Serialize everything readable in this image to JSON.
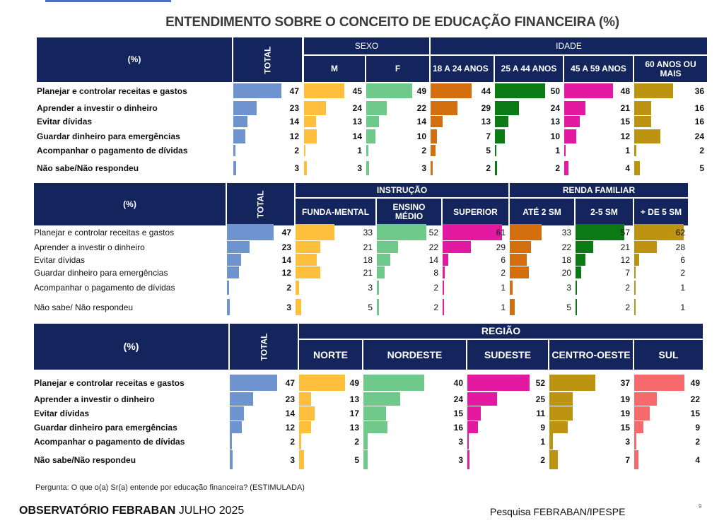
{
  "title": "ENTENDIMENTO SOBRE  O CONCEITO DE EDUCAÇÃO FINANCEIRA (%)",
  "footer": {
    "question": "Pergunta: O que o(a) Sr(a) entende por educação financeira? (ESTIMULADA)",
    "brand_bold": "OBSERVATÓRIO  FEBRABAN",
    "brand_date": " JULHO 2025",
    "source": "Pesquisa FEBRABAN/IPESPE",
    "page": "9"
  },
  "colors": {
    "header": "#14255e",
    "total": "#6f93cf",
    "M": "#fdbf3c",
    "F": "#6fc98b",
    "18a24": "#d46f10",
    "25a44": "#0b7a14",
    "45a59": "#e319a2",
    "60mais": "#bd9411",
    "fundamental": "#fdbf3c",
    "medio": "#6fc98b",
    "superior": "#e319a2",
    "ate2sm": "#d46f10",
    "2a5sm": "#0b7a14",
    "mais5sm": "#bd9411",
    "norte": "#fdbf3c",
    "nordeste": "#6fc98b",
    "sudeste": "#e319a2",
    "centro_oeste": "#bd9411",
    "sul": "#f66a6e"
  },
  "chart_data": [
    {
      "type": "table",
      "pct_label": "(%)",
      "total_label": "TOTAL",
      "groups": [
        {
          "label": "SEXO"
        },
        {
          "label": "IDADE"
        }
      ],
      "categories": [
        "Planejar e controlar receitas e gastos",
        "Aprender a investir o dinheiro",
        "Evitar dívidas",
        "Guardar dinheiro para emergências",
        "Acompanhar o pagamento de dívidas",
        "Não sabe/Não respondeu"
      ],
      "series": [
        {
          "name": "TOTAL",
          "values": [
            47,
            23,
            14,
            12,
            2,
            3
          ]
        },
        {
          "name": "M",
          "values": [
            45,
            24,
            13,
            14,
            1,
            3
          ]
        },
        {
          "name": "F",
          "values": [
            49,
            22,
            14,
            10,
            2,
            3
          ]
        },
        {
          "name": "18 A 24 ANOS",
          "values": [
            44,
            29,
            13,
            7,
            5,
            2
          ]
        },
        {
          "name": "25 A 44 ANOS",
          "values": [
            50,
            24,
            13,
            10,
            1,
            2
          ]
        },
        {
          "name": "45 A 59 ANOS",
          "values": [
            48,
            21,
            15,
            12,
            1,
            4
          ]
        },
        {
          "name": "60 ANOS OU MAIS",
          "values": [
            36,
            16,
            16,
            24,
            2,
            5
          ]
        }
      ]
    },
    {
      "type": "table",
      "pct_label": "(%)",
      "total_label": "TOTAL",
      "groups": [
        {
          "label": "INSTRUÇÃO"
        },
        {
          "label": "RENDA FAMILIAR"
        }
      ],
      "categories": [
        "Planejar e controlar receitas e gastos",
        "Aprender a investir o dinheiro",
        "Evitar dívidas",
        "Guardar dinheiro para emergências",
        "Acompanhar o pagamento de dívidas",
        "Não sabe/ Não respondeu"
      ],
      "series": [
        {
          "name": "TOTAL",
          "values": [
            47,
            23,
            14,
            12,
            2,
            3
          ]
        },
        {
          "name": "FUNDA-MENTAL",
          "values": [
            33,
            21,
            18,
            21,
            3,
            5
          ]
        },
        {
          "name": "ENSINO MÉDIO",
          "values": [
            52,
            22,
            14,
            8,
            2,
            2
          ]
        },
        {
          "name": "SUPERIOR",
          "values": [
            61,
            29,
            6,
            2,
            1,
            1
          ]
        },
        {
          "name": "ATÉ 2 SM",
          "values": [
            33,
            22,
            18,
            20,
            3,
            5
          ]
        },
        {
          "name": "2-5 SM",
          "values": [
            57,
            21,
            12,
            7,
            2,
            2
          ]
        },
        {
          "name": "+ DE 5 SM",
          "values": [
            62,
            28,
            6,
            2,
            1,
            1
          ]
        }
      ]
    },
    {
      "type": "table",
      "pct_label": "(%)",
      "total_label": "TOTAL",
      "groups": [
        {
          "label": "REGIÃO"
        }
      ],
      "categories": [
        "Planejar e controlar receitas e gastos",
        "Aprender a investir o dinheiro",
        "Evitar dívidas",
        "Guardar dinheiro para emergências",
        "Acompanhar o pagamento de dívidas",
        "Não sabe/Não respondeu"
      ],
      "series": [
        {
          "name": "TOTAL",
          "values": [
            47,
            23,
            14,
            12,
            2,
            3
          ]
        },
        {
          "name": "NORTE",
          "values": [
            49,
            13,
            17,
            13,
            2,
            5
          ]
        },
        {
          "name": "NORDESTE",
          "values": [
            40,
            24,
            15,
            16,
            3,
            3
          ]
        },
        {
          "name": "SUDESTE",
          "values": [
            52,
            25,
            11,
            9,
            1,
            2
          ]
        },
        {
          "name": "CENTRO-OESTE",
          "values": [
            37,
            19,
            19,
            15,
            3,
            7
          ]
        },
        {
          "name": "SUL",
          "values": [
            49,
            22,
            15,
            9,
            2,
            4
          ]
        }
      ]
    }
  ]
}
